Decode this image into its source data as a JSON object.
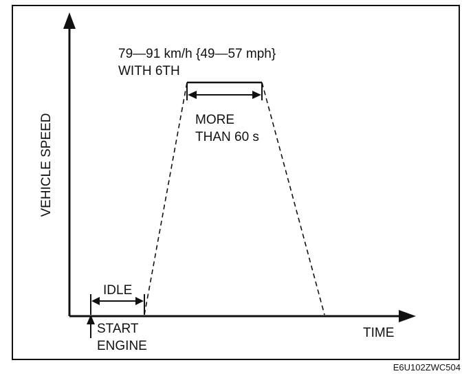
{
  "texts": {
    "speed_line1": "79—91 km/h {49—57 mph}",
    "speed_line2": "WITH 6TH",
    "more_line1": "MORE",
    "more_line2": "THAN 60 s",
    "idle": "IDLE",
    "start_line1": "START",
    "start_line2": "ENGINE",
    "y_axis": "VEHICLE SPEED",
    "x_axis": "TIME",
    "figure_code": "E6U102ZWC504"
  },
  "colors": {
    "ink": "#111111",
    "background": "#ffffff"
  }
}
